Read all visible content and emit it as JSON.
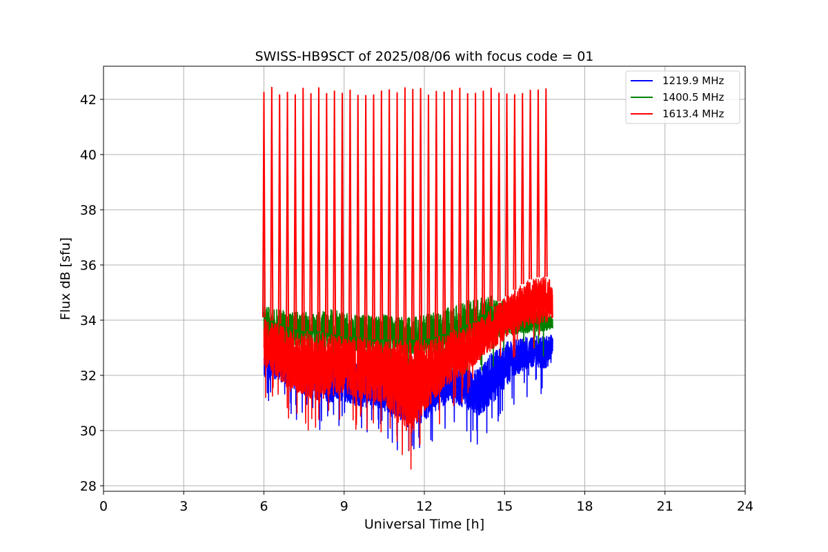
{
  "chart_data": {
    "type": "line",
    "title": "SWISS-HB9SCT of 2025/08/06 with focus code = 01",
    "xlabel": "Universal Time [h]",
    "ylabel": "Flux dB [sfu]",
    "xlim": [
      0,
      24
    ],
    "ylim": [
      27.8,
      43.2
    ],
    "xticks": [
      0,
      3,
      6,
      9,
      12,
      15,
      18,
      21,
      24
    ],
    "yticks": [
      28,
      30,
      32,
      34,
      36,
      38,
      40,
      42
    ],
    "grid": true,
    "legend_position": "top-right",
    "time_range": [
      6.0,
      16.8
    ],
    "series": [
      {
        "name": "1219.9 MHz",
        "color": "#0000ff",
        "x": [
          6.0,
          6.5,
          7.0,
          7.5,
          8.0,
          8.5,
          9.0,
          9.5,
          10.0,
          10.5,
          11.0,
          11.5,
          12.0,
          12.5,
          13.0,
          13.5,
          14.0,
          14.5,
          15.0,
          15.5,
          16.0,
          16.5,
          16.8
        ],
        "low": [
          31.6,
          31.6,
          31.3,
          31.0,
          30.8,
          30.7,
          30.8,
          30.6,
          30.5,
          30.4,
          30.0,
          29.6,
          30.0,
          30.4,
          30.8,
          30.5,
          30.2,
          30.6,
          31.2,
          31.8,
          32.1,
          32.0,
          32.3
        ],
        "high": [
          33.0,
          33.2,
          33.0,
          32.9,
          32.8,
          32.7,
          32.6,
          32.5,
          32.4,
          32.4,
          32.3,
          32.4,
          32.4,
          32.5,
          32.4,
          32.3,
          32.2,
          32.8,
          33.2,
          33.4,
          33.4,
          33.5,
          33.5
        ]
      },
      {
        "name": "1400.5 MHz",
        "color": "#008000",
        "x": [
          6.0,
          6.5,
          7.0,
          7.5,
          8.0,
          8.5,
          9.0,
          9.5,
          10.0,
          10.5,
          11.0,
          11.5,
          12.0,
          12.5,
          13.0,
          13.5,
          14.0,
          14.5,
          15.0,
          15.5,
          16.0,
          16.5,
          16.8
        ],
        "low": [
          33.0,
          33.0,
          32.9,
          32.8,
          32.7,
          32.7,
          32.6,
          32.6,
          32.6,
          32.5,
          32.5,
          32.5,
          32.5,
          32.6,
          32.6,
          32.7,
          32.8,
          33.0,
          33.2,
          33.3,
          33.4,
          33.5,
          33.6
        ],
        "high": [
          34.5,
          34.4,
          34.3,
          34.3,
          34.3,
          34.4,
          34.3,
          34.2,
          34.2,
          34.2,
          34.1,
          34.1,
          34.2,
          34.3,
          34.5,
          34.7,
          34.8,
          34.9,
          34.7,
          34.6,
          34.4,
          34.3,
          34.1
        ]
      },
      {
        "name": "1613.4 MHz",
        "color": "#ff0000",
        "x": [
          6.0,
          6.5,
          7.0,
          7.5,
          8.0,
          8.5,
          9.0,
          9.5,
          10.0,
          10.5,
          11.0,
          11.5,
          12.0,
          12.5,
          13.0,
          13.5,
          14.0,
          14.5,
          15.0,
          15.5,
          16.0,
          16.5,
          16.8
        ],
        "low": [
          32.0,
          31.6,
          31.0,
          30.9,
          30.5,
          30.8,
          31.0,
          30.8,
          30.6,
          30.6,
          29.8,
          29.2,
          30.2,
          30.9,
          31.4,
          31.7,
          32.2,
          32.6,
          33.0,
          33.3,
          33.5,
          33.6,
          33.8
        ],
        "high": [
          34.1,
          33.9,
          33.7,
          33.6,
          33.6,
          33.5,
          33.4,
          33.4,
          33.3,
          33.3,
          33.3,
          33.3,
          33.3,
          33.4,
          33.6,
          33.8,
          34.0,
          34.5,
          34.8,
          35.2,
          35.5,
          35.6,
          35.4
        ],
        "spike_peak": 42.3
      }
    ]
  }
}
